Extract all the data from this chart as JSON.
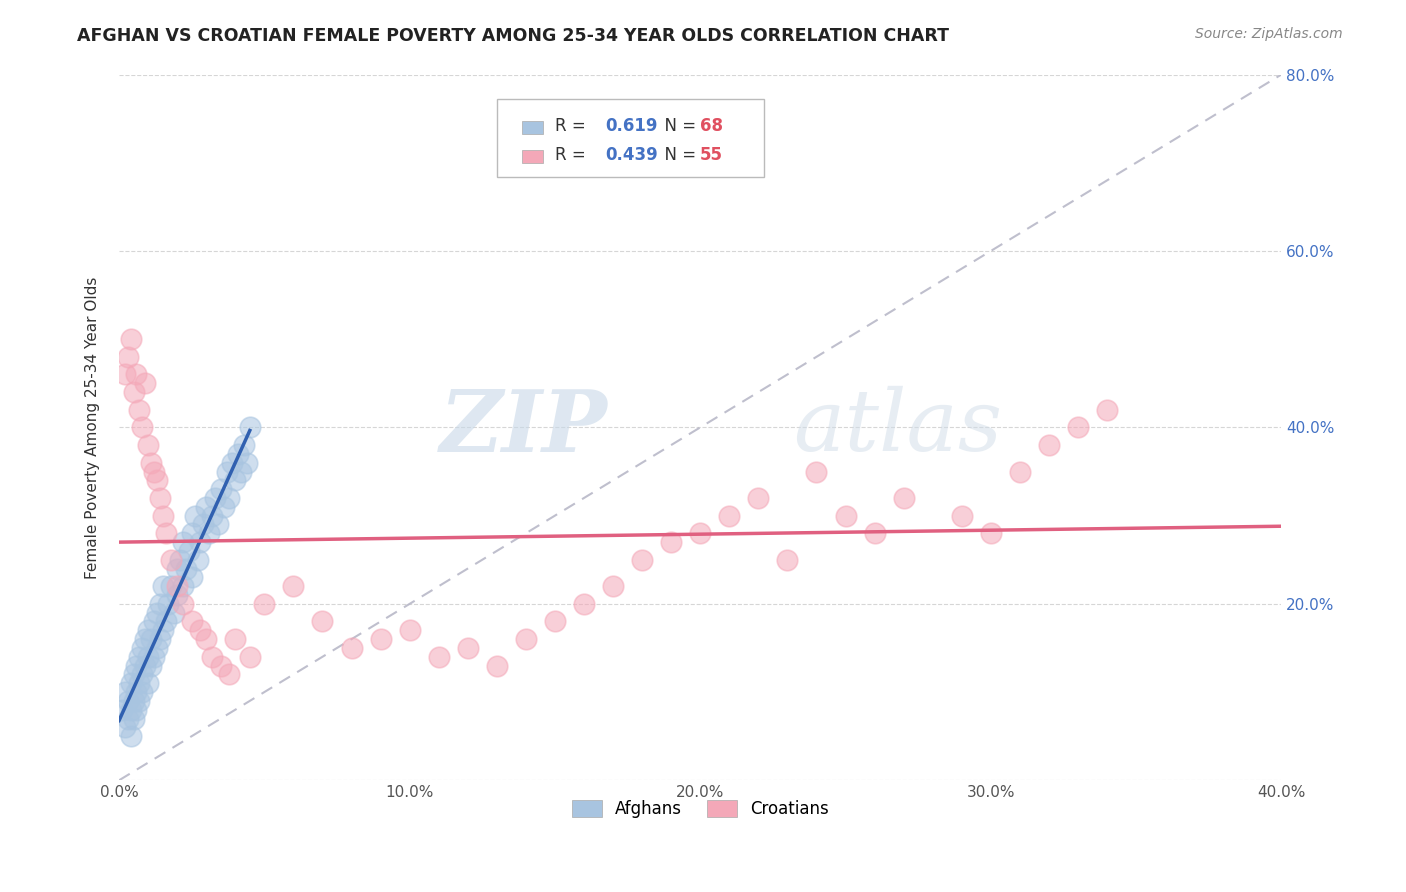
{
  "title": "AFGHAN VS CROATIAN FEMALE POVERTY AMONG 25-34 YEAR OLDS CORRELATION CHART",
  "source": "Source: ZipAtlas.com",
  "ylabel": "Female Poverty Among 25-34 Year Olds",
  "xlim": [
    0.0,
    0.4
  ],
  "ylim": [
    0.0,
    0.8
  ],
  "xticks": [
    0.0,
    0.1,
    0.2,
    0.3,
    0.4
  ],
  "yticks": [
    0.0,
    0.2,
    0.4,
    0.6,
    0.8
  ],
  "xtick_labels": [
    "0.0%",
    "10.0%",
    "20.0%",
    "30.0%",
    "40.0%"
  ],
  "ytick_labels_right": [
    "",
    "20.0%",
    "40.0%",
    "60.0%",
    "80.0%"
  ],
  "afghan_color": "#a8c4e0",
  "croatian_color": "#f4a8b8",
  "afghan_line_color": "#3060b0",
  "croatian_line_color": "#e06080",
  "diagonal_color": "#b8b8c8",
  "R_afghan": 0.619,
  "N_afghan": 68,
  "R_croatian": 0.439,
  "N_croatian": 55,
  "watermark_zip": "ZIP",
  "watermark_atlas": "atlas",
  "legend_labels": [
    "Afghans",
    "Croatians"
  ],
  "afghan_x": [
    0.001,
    0.002,
    0.002,
    0.003,
    0.003,
    0.004,
    0.004,
    0.004,
    0.005,
    0.005,
    0.005,
    0.006,
    0.006,
    0.006,
    0.007,
    0.007,
    0.007,
    0.008,
    0.008,
    0.008,
    0.009,
    0.009,
    0.01,
    0.01,
    0.01,
    0.011,
    0.011,
    0.012,
    0.012,
    0.013,
    0.013,
    0.014,
    0.014,
    0.015,
    0.015,
    0.016,
    0.017,
    0.018,
    0.019,
    0.02,
    0.02,
    0.021,
    0.022,
    0.022,
    0.023,
    0.024,
    0.025,
    0.025,
    0.026,
    0.027,
    0.028,
    0.029,
    0.03,
    0.031,
    0.032,
    0.033,
    0.034,
    0.035,
    0.036,
    0.037,
    0.038,
    0.039,
    0.04,
    0.041,
    0.042,
    0.043,
    0.044,
    0.045
  ],
  "afghan_y": [
    0.08,
    0.06,
    0.1,
    0.07,
    0.09,
    0.05,
    0.08,
    0.11,
    0.07,
    0.09,
    0.12,
    0.1,
    0.13,
    0.08,
    0.11,
    0.14,
    0.09,
    0.12,
    0.15,
    0.1,
    0.13,
    0.16,
    0.11,
    0.14,
    0.17,
    0.13,
    0.16,
    0.14,
    0.18,
    0.15,
    0.19,
    0.16,
    0.2,
    0.17,
    0.22,
    0.18,
    0.2,
    0.22,
    0.19,
    0.24,
    0.21,
    0.25,
    0.22,
    0.27,
    0.24,
    0.26,
    0.28,
    0.23,
    0.3,
    0.25,
    0.27,
    0.29,
    0.31,
    0.28,
    0.3,
    0.32,
    0.29,
    0.33,
    0.31,
    0.35,
    0.32,
    0.36,
    0.34,
    0.37,
    0.35,
    0.38,
    0.36,
    0.4
  ],
  "croatian_x": [
    0.002,
    0.003,
    0.004,
    0.005,
    0.006,
    0.007,
    0.008,
    0.009,
    0.01,
    0.011,
    0.012,
    0.013,
    0.014,
    0.015,
    0.016,
    0.018,
    0.02,
    0.022,
    0.025,
    0.028,
    0.03,
    0.032,
    0.035,
    0.038,
    0.04,
    0.045,
    0.05,
    0.06,
    0.07,
    0.08,
    0.09,
    0.1,
    0.11,
    0.12,
    0.13,
    0.14,
    0.15,
    0.16,
    0.17,
    0.18,
    0.19,
    0.2,
    0.21,
    0.22,
    0.23,
    0.24,
    0.25,
    0.26,
    0.27,
    0.29,
    0.3,
    0.31,
    0.32,
    0.33,
    0.34
  ],
  "croatian_y": [
    0.46,
    0.48,
    0.5,
    0.44,
    0.46,
    0.42,
    0.4,
    0.45,
    0.38,
    0.36,
    0.35,
    0.34,
    0.32,
    0.3,
    0.28,
    0.25,
    0.22,
    0.2,
    0.18,
    0.17,
    0.16,
    0.14,
    0.13,
    0.12,
    0.16,
    0.14,
    0.2,
    0.22,
    0.18,
    0.15,
    0.16,
    0.17,
    0.14,
    0.15,
    0.13,
    0.16,
    0.18,
    0.2,
    0.22,
    0.25,
    0.27,
    0.28,
    0.3,
    0.32,
    0.25,
    0.35,
    0.3,
    0.28,
    0.32,
    0.3,
    0.28,
    0.35,
    0.38,
    0.4,
    0.42
  ]
}
